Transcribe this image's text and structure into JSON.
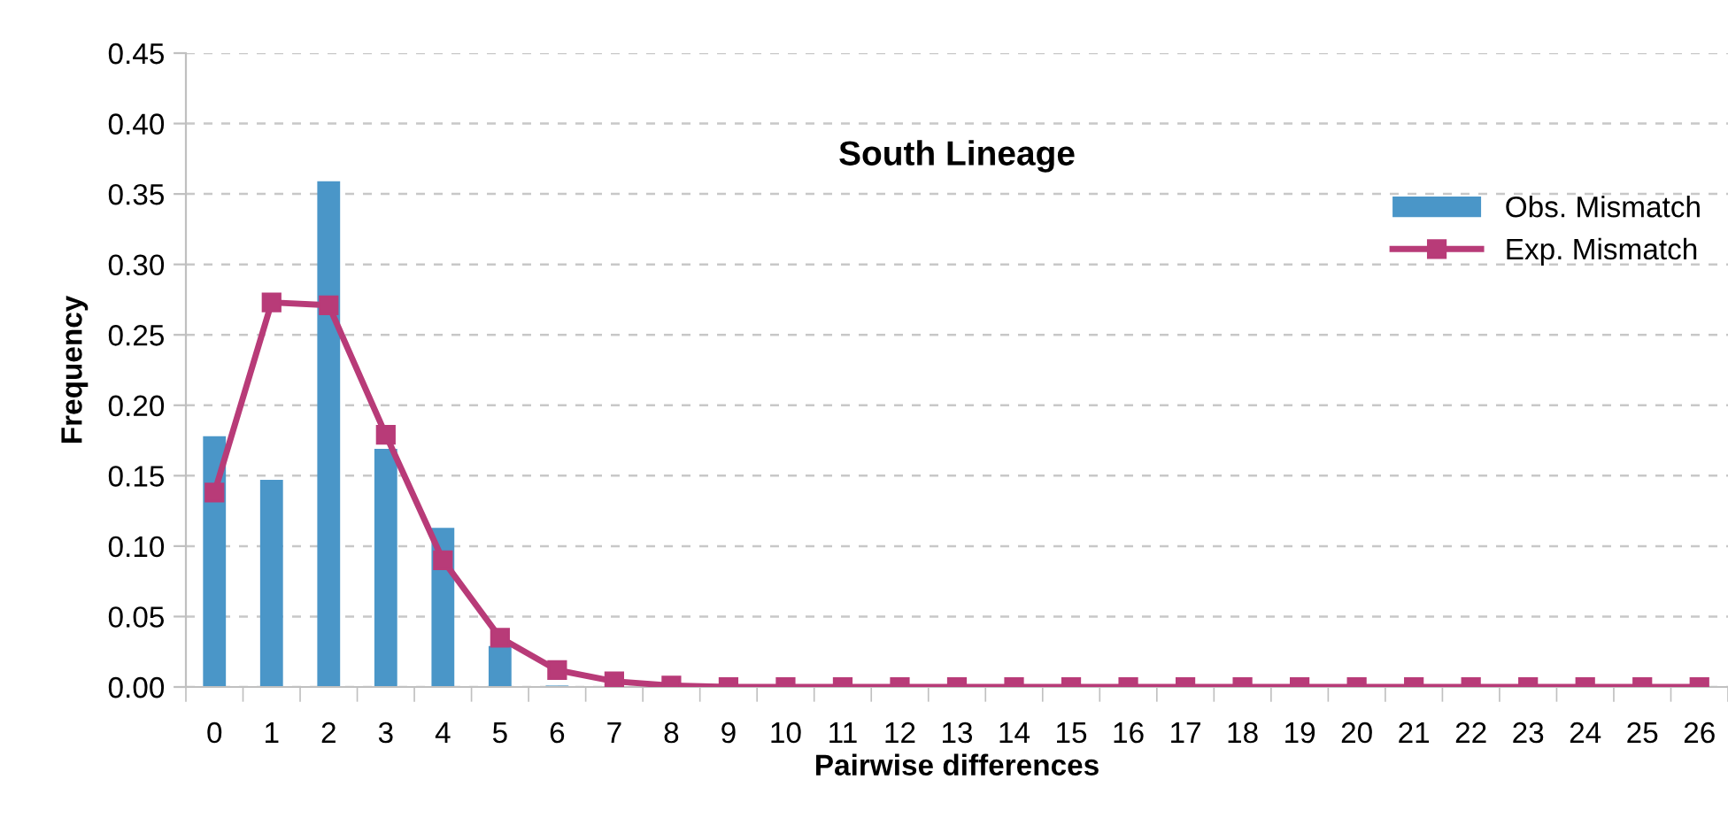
{
  "chart_data": {
    "type": "bar",
    "title": "South Lineage",
    "xlabel": "Pairwise differences",
    "ylabel": "Frequency",
    "categories": [
      "0",
      "1",
      "2",
      "3",
      "4",
      "5",
      "6",
      "7",
      "8",
      "9",
      "10",
      "11",
      "12",
      "13",
      "14",
      "15",
      "16",
      "17",
      "18",
      "19",
      "20",
      "21",
      "22",
      "23",
      "24",
      "25",
      "26"
    ],
    "series": [
      {
        "name": "Obs. Mismatch",
        "color": "#4a96c8",
        "values": [
          0.178,
          0.147,
          0.359,
          0.169,
          0.113,
          0.029,
          0.001,
          0,
          0,
          0,
          0,
          0,
          0,
          0,
          0,
          0,
          0,
          0,
          0,
          0,
          0,
          0,
          0,
          0,
          0,
          0,
          0
        ]
      },
      {
        "name": "Exp. Mismatch",
        "type": "line",
        "color": "#b83b78",
        "marker": "square",
        "values": [
          0.138,
          0.273,
          0.271,
          0.179,
          0.09,
          0.035,
          0.012,
          0.004,
          0.001,
          0,
          0,
          0,
          0,
          0,
          0,
          0,
          0,
          0,
          0,
          0,
          0,
          0,
          0,
          0,
          0,
          0,
          0
        ]
      }
    ],
    "ylim": [
      0,
      0.45
    ],
    "yticks": [
      {
        "value": 0,
        "label": "0.00"
      },
      {
        "value": 0.05,
        "label": "0.05"
      },
      {
        "value": 0.1,
        "label": "0.10"
      },
      {
        "value": 0.15,
        "label": "0.15"
      },
      {
        "value": 0.2,
        "label": "0.20"
      },
      {
        "value": 0.25,
        "label": "0.25"
      },
      {
        "value": 0.3,
        "label": "0.30"
      },
      {
        "value": 0.35,
        "label": "0.35"
      },
      {
        "value": 0.4,
        "label": "0.40"
      },
      {
        "value": 0.45,
        "label": "0.45"
      }
    ],
    "grid": "y",
    "legend": "right"
  }
}
